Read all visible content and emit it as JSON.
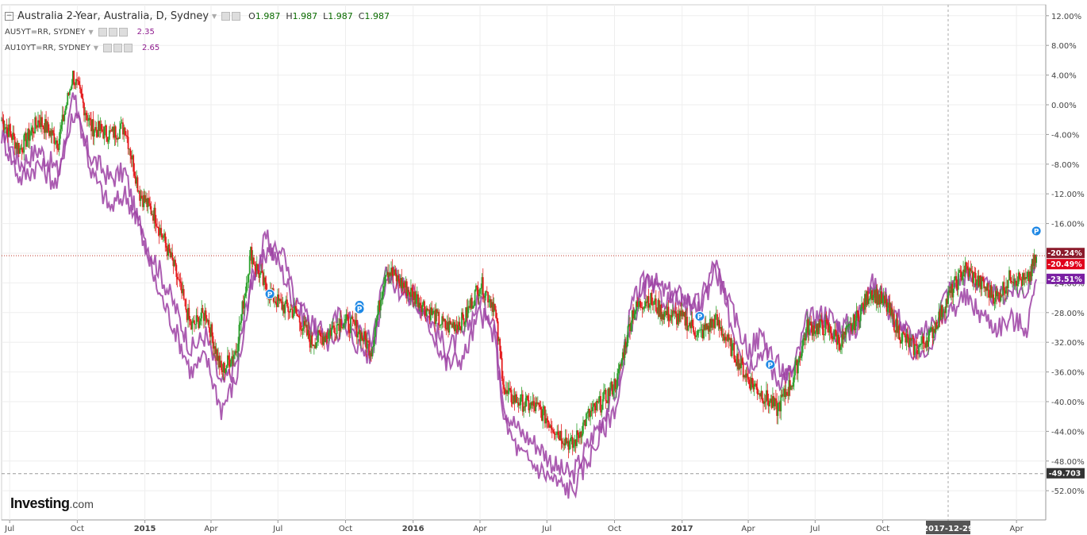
{
  "legend": {
    "main_title": "Australia 2-Year, Australia, D, Sydney",
    "ohlc": {
      "o_label": "O",
      "o": "1.987",
      "h_label": "H",
      "h": "1.987",
      "l_label": "L",
      "l": "1.987",
      "c_label": "C",
      "c": "1.987"
    },
    "series2_label": "AU5YT=RR, SYDNEY",
    "series2_value": "2.35",
    "series3_label": "AU10YT=RR, SYDNEY",
    "series3_value": "2.65"
  },
  "logo": {
    "brand": "Investing",
    "suffix": ".com"
  },
  "colors": {
    "candle_up": "#2ca02c",
    "candle_down": "#e41a1c",
    "compare_line": "#9c3fa3",
    "grid": "#eeeeee",
    "axis_badge": "#8b1a2b",
    "price_line": "#c0392b"
  },
  "chart_data": {
    "type": "line",
    "title": "",
    "xlabel": "",
    "ylabel": "",
    "ylim": [
      -54,
      13
    ],
    "y_ticks": [
      "12.00%",
      "8.00%",
      "4.00%",
      "0.00%",
      "-4.00%",
      "-8.00%",
      "-12.00%",
      "-16.00%",
      "-20.00%",
      "-24.00%",
      "-28.00%",
      "-32.00%",
      "-36.00%",
      "-40.00%",
      "-44.00%",
      "-48.00%",
      "-52.00%"
    ],
    "x_ticks": [
      "Jul",
      "Oct",
      "2015",
      "Apr",
      "Jul",
      "Oct",
      "2016",
      "Apr",
      "Jul",
      "Oct",
      "2017",
      "Apr",
      "Jul",
      "Oct",
      "2017-12-29",
      "Apr"
    ],
    "x_range": [
      "2014-06-20",
      "2018-04-30"
    ],
    "series": [
      {
        "kind": "candles",
        "points": [
          [
            "2014-06-20",
            -2
          ],
          [
            "2014-07-15",
            -6
          ],
          [
            "2014-08-10",
            -2
          ],
          [
            "2014-09-05",
            -5
          ],
          [
            "2014-09-25",
            4
          ],
          [
            "2014-10-20",
            -3
          ],
          [
            "2014-11-15",
            -4
          ],
          [
            "2014-12-05",
            -3
          ],
          [
            "2014-12-25",
            -12
          ],
          [
            "2015-01-15",
            -15
          ],
          [
            "2015-02-10",
            -22
          ],
          [
            "2015-03-05",
            -30
          ],
          [
            "2015-03-25",
            -28
          ],
          [
            "2015-04-15",
            -36
          ],
          [
            "2015-05-05",
            -33
          ],
          [
            "2015-05-25",
            -20
          ],
          [
            "2015-06-15",
            -25
          ],
          [
            "2015-07-05",
            -27
          ],
          [
            "2015-07-25",
            -28
          ],
          [
            "2015-08-15",
            -32
          ],
          [
            "2015-09-05",
            -31
          ],
          [
            "2015-09-25",
            -29
          ],
          [
            "2015-10-15",
            -30
          ],
          [
            "2015-11-05",
            -33
          ],
          [
            "2015-11-25",
            -22
          ],
          [
            "2015-12-15",
            -24
          ],
          [
            "2016-01-05",
            -26
          ],
          [
            "2016-01-25",
            -28
          ],
          [
            "2016-02-15",
            -30
          ],
          [
            "2016-03-10",
            -29
          ],
          [
            "2016-04-01",
            -24
          ],
          [
            "2016-04-20",
            -27
          ],
          [
            "2016-05-05",
            -39
          ],
          [
            "2016-05-25",
            -40
          ],
          [
            "2016-06-20",
            -41
          ],
          [
            "2016-07-15",
            -44
          ],
          [
            "2016-08-05",
            -46
          ],
          [
            "2016-08-25",
            -42
          ],
          [
            "2016-09-15",
            -40
          ],
          [
            "2016-10-05",
            -37
          ],
          [
            "2016-10-25",
            -28
          ],
          [
            "2016-11-15",
            -26
          ],
          [
            "2016-12-05",
            -28
          ],
          [
            "2017-01-05",
            -29
          ],
          [
            "2017-01-25",
            -31
          ],
          [
            "2017-02-15",
            -29
          ],
          [
            "2017-03-10",
            -33
          ],
          [
            "2017-04-01",
            -37
          ],
          [
            "2017-04-20",
            -39
          ],
          [
            "2017-05-10",
            -41
          ],
          [
            "2017-06-01",
            -37
          ],
          [
            "2017-06-20",
            -30
          ],
          [
            "2017-07-15",
            -30
          ],
          [
            "2017-08-05",
            -32
          ],
          [
            "2017-08-25",
            -29
          ],
          [
            "2017-09-15",
            -25
          ],
          [
            "2017-10-05",
            -27
          ],
          [
            "2017-10-25",
            -31
          ],
          [
            "2017-11-15",
            -33
          ],
          [
            "2017-12-05",
            -31
          ],
          [
            "2017-12-29",
            -26
          ],
          [
            "2018-01-20",
            -22
          ],
          [
            "2018-02-10",
            -24
          ],
          [
            "2018-03-05",
            -26
          ],
          [
            "2018-03-25",
            -23
          ],
          [
            "2018-04-15",
            -24
          ],
          [
            "2018-04-28",
            -20.49
          ]
        ]
      },
      {
        "name": "AU5YT=RR, SYDNEY",
        "points": [
          [
            "2014-06-20",
            -3
          ],
          [
            "2014-07-15",
            -8
          ],
          [
            "2014-08-10",
            -6
          ],
          [
            "2014-09-05",
            -9
          ],
          [
            "2014-09-25",
            -1
          ],
          [
            "2014-10-20",
            -7
          ],
          [
            "2014-11-15",
            -10
          ],
          [
            "2014-12-05",
            -9
          ],
          [
            "2014-12-25",
            -17
          ],
          [
            "2015-01-15",
            -21
          ],
          [
            "2015-02-10",
            -27
          ],
          [
            "2015-03-05",
            -33
          ],
          [
            "2015-03-25",
            -31
          ],
          [
            "2015-04-15",
            -38
          ],
          [
            "2015-05-05",
            -35
          ],
          [
            "2015-05-25",
            -24
          ],
          [
            "2015-06-15",
            -18
          ],
          [
            "2015-07-05",
            -22
          ],
          [
            "2015-07-25",
            -27
          ],
          [
            "2015-08-15",
            -30
          ],
          [
            "2015-09-05",
            -31
          ],
          [
            "2015-09-25",
            -28
          ],
          [
            "2015-10-15",
            -30
          ],
          [
            "2015-11-05",
            -32
          ],
          [
            "2015-11-25",
            -22
          ],
          [
            "2015-12-15",
            -24
          ],
          [
            "2016-01-05",
            -26
          ],
          [
            "2016-01-25",
            -29
          ],
          [
            "2016-02-15",
            -33
          ],
          [
            "2016-03-10",
            -31
          ],
          [
            "2016-04-01",
            -26
          ],
          [
            "2016-04-20",
            -29
          ],
          [
            "2016-05-05",
            -41
          ],
          [
            "2016-05-25",
            -44
          ],
          [
            "2016-06-20",
            -46
          ],
          [
            "2016-07-15",
            -49
          ],
          [
            "2016-08-05",
            -50
          ],
          [
            "2016-08-25",
            -46
          ],
          [
            "2016-09-15",
            -42
          ],
          [
            "2016-10-05",
            -38
          ],
          [
            "2016-10-25",
            -27
          ],
          [
            "2016-11-15",
            -23
          ],
          [
            "2016-12-05",
            -25
          ],
          [
            "2017-01-05",
            -26
          ],
          [
            "2017-01-25",
            -27
          ],
          [
            "2017-02-15",
            -21
          ],
          [
            "2017-03-10",
            -30
          ],
          [
            "2017-04-01",
            -35
          ],
          [
            "2017-04-20",
            -33
          ],
          [
            "2017-05-10",
            -37
          ],
          [
            "2017-06-01",
            -36
          ],
          [
            "2017-06-20",
            -29
          ],
          [
            "2017-07-15",
            -28
          ],
          [
            "2017-08-05",
            -30
          ],
          [
            "2017-08-25",
            -29
          ],
          [
            "2017-09-15",
            -24
          ],
          [
            "2017-10-05",
            -26
          ],
          [
            "2017-10-25",
            -29
          ],
          [
            "2017-11-15",
            -32
          ],
          [
            "2017-12-05",
            -30
          ],
          [
            "2017-12-29",
            -25
          ],
          [
            "2018-01-20",
            -23
          ],
          [
            "2018-02-10",
            -24
          ],
          [
            "2018-03-05",
            -26
          ],
          [
            "2018-03-25",
            -25
          ],
          [
            "2018-04-15",
            -25
          ],
          [
            "2018-04-28",
            -20.24
          ]
        ]
      },
      {
        "name": "AU10YT=RR, SYDNEY",
        "points": [
          [
            "2014-06-20",
            -4
          ],
          [
            "2014-07-15",
            -10
          ],
          [
            "2014-08-10",
            -8
          ],
          [
            "2014-09-05",
            -11
          ],
          [
            "2014-09-25",
            2
          ],
          [
            "2014-10-20",
            -9
          ],
          [
            "2014-11-15",
            -14
          ],
          [
            "2014-12-05",
            -12
          ],
          [
            "2014-12-25",
            -16
          ],
          [
            "2015-01-15",
            -24
          ],
          [
            "2015-02-10",
            -30
          ],
          [
            "2015-03-05",
            -36
          ],
          [
            "2015-03-25",
            -34
          ],
          [
            "2015-04-15",
            -41
          ],
          [
            "2015-05-05",
            -37
          ],
          [
            "2015-05-25",
            -25
          ],
          [
            "2015-06-15",
            -20
          ],
          [
            "2015-07-05",
            -19
          ],
          [
            "2015-07-25",
            -27
          ],
          [
            "2015-08-15",
            -29
          ],
          [
            "2015-09-05",
            -32
          ],
          [
            "2015-09-25",
            -30
          ],
          [
            "2015-10-15",
            -32
          ],
          [
            "2015-11-05",
            -34
          ],
          [
            "2015-11-25",
            -23
          ],
          [
            "2015-12-15",
            -25
          ],
          [
            "2016-01-05",
            -27
          ],
          [
            "2016-01-25",
            -30
          ],
          [
            "2016-02-15",
            -35
          ],
          [
            "2016-03-10",
            -34
          ],
          [
            "2016-04-01",
            -28
          ],
          [
            "2016-04-20",
            -31
          ],
          [
            "2016-05-05",
            -43
          ],
          [
            "2016-05-25",
            -47
          ],
          [
            "2016-06-20",
            -49
          ],
          [
            "2016-07-15",
            -51
          ],
          [
            "2016-08-05",
            -52
          ],
          [
            "2016-08-25",
            -48
          ],
          [
            "2016-09-15",
            -44
          ],
          [
            "2016-10-05",
            -40
          ],
          [
            "2016-10-25",
            -29
          ],
          [
            "2016-11-15",
            -24
          ],
          [
            "2016-12-05",
            -26
          ],
          [
            "2017-01-05",
            -27
          ],
          [
            "2017-01-25",
            -28
          ],
          [
            "2017-02-15",
            -22
          ],
          [
            "2017-03-10",
            -28
          ],
          [
            "2017-04-01",
            -33
          ],
          [
            "2017-04-20",
            -31
          ],
          [
            "2017-05-10",
            -35
          ],
          [
            "2017-06-01",
            -37
          ],
          [
            "2017-06-20",
            -30
          ],
          [
            "2017-07-15",
            -29
          ],
          [
            "2017-08-05",
            -31
          ],
          [
            "2017-08-25",
            -30
          ],
          [
            "2017-09-15",
            -25
          ],
          [
            "2017-10-05",
            -27
          ],
          [
            "2017-10-25",
            -30
          ],
          [
            "2017-11-15",
            -34
          ],
          [
            "2017-12-05",
            -32
          ],
          [
            "2017-12-29",
            -28
          ],
          [
            "2018-01-20",
            -26
          ],
          [
            "2018-02-10",
            -28
          ],
          [
            "2018-03-05",
            -30
          ],
          [
            "2018-03-25",
            -29
          ],
          [
            "2018-04-15",
            -30
          ],
          [
            "2018-04-28",
            -23.51
          ]
        ]
      }
    ],
    "price_badges": [
      {
        "text": "-20.24%",
        "value": -20.24,
        "color": "#8b1a2b"
      },
      {
        "text": "-20.49%",
        "value": -20.49,
        "color": "#e0001b"
      },
      {
        "text": "-23.51%",
        "value": -23.51,
        "color": "#7a1fa2"
      },
      {
        "text": "-49.703",
        "value": -49.703,
        "color": "#333333"
      }
    ],
    "event_markers": [
      {
        "date": "2015-06-20",
        "value": -25.5,
        "label": "P"
      },
      {
        "date": "2015-10-20",
        "value": -27,
        "label": "P"
      },
      {
        "date": "2015-10-20",
        "value": -27.5,
        "label": "P"
      },
      {
        "date": "2017-01-25",
        "value": -28.5,
        "label": "P"
      },
      {
        "date": "2017-05-01",
        "value": -35,
        "label": "P"
      },
      {
        "date": "2018-04-28",
        "value": -17,
        "label": "P"
      }
    ],
    "crosshair_date": "2017-12-29",
    "grid": true
  }
}
